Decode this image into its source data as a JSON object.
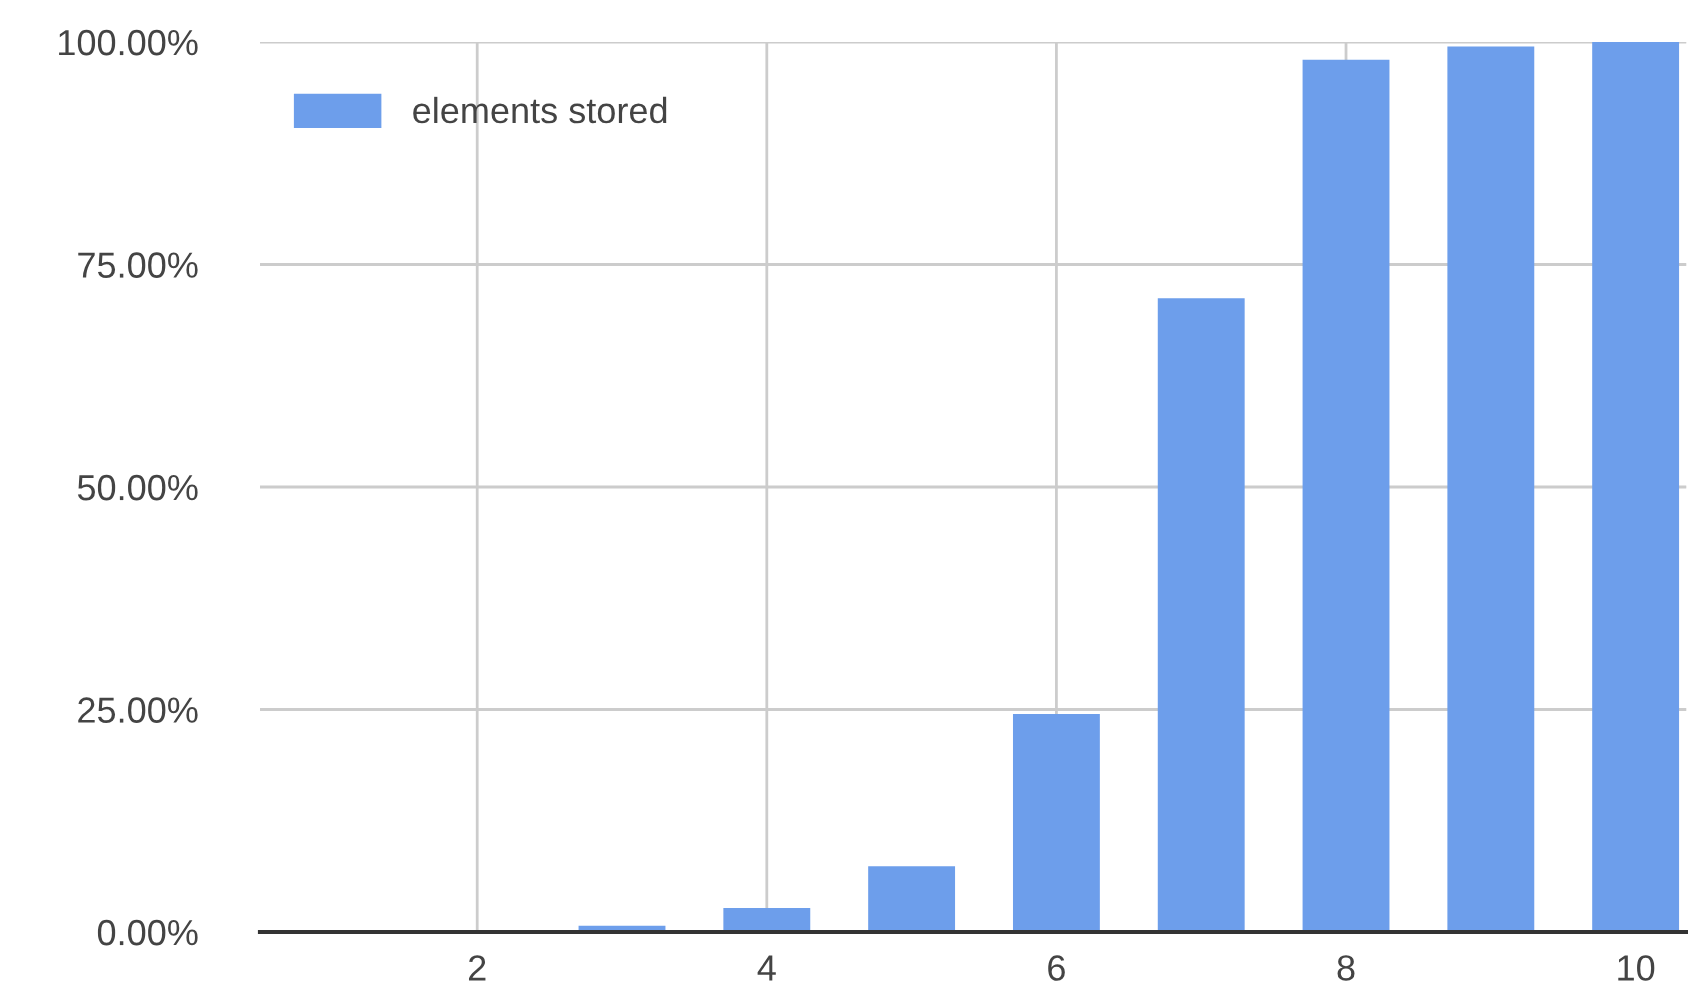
{
  "chart_data": {
    "type": "bar",
    "x": [
      3,
      4,
      5,
      6,
      7,
      8,
      9,
      10
    ],
    "series": [
      {
        "name": "elements stored",
        "color": "#6d9eeb",
        "values": [
          0.7,
          2.7,
          7.4,
          24.5,
          71.2,
          98,
          99.5,
          100
        ]
      }
    ],
    "xlim": [
      0.5,
      10.35
    ],
    "xticks": [
      2,
      4,
      6,
      8,
      10
    ],
    "ylim": [
      0,
      100
    ],
    "yticks": [
      {
        "value": 0,
        "label": "0.00%"
      },
      {
        "value": 25,
        "label": "25.00%"
      },
      {
        "value": 50,
        "label": "50.00%"
      },
      {
        "value": 75,
        "label": "75.00%"
      },
      {
        "value": 100,
        "label": "100.00%"
      }
    ],
    "grid": true,
    "legend": "top left"
  }
}
